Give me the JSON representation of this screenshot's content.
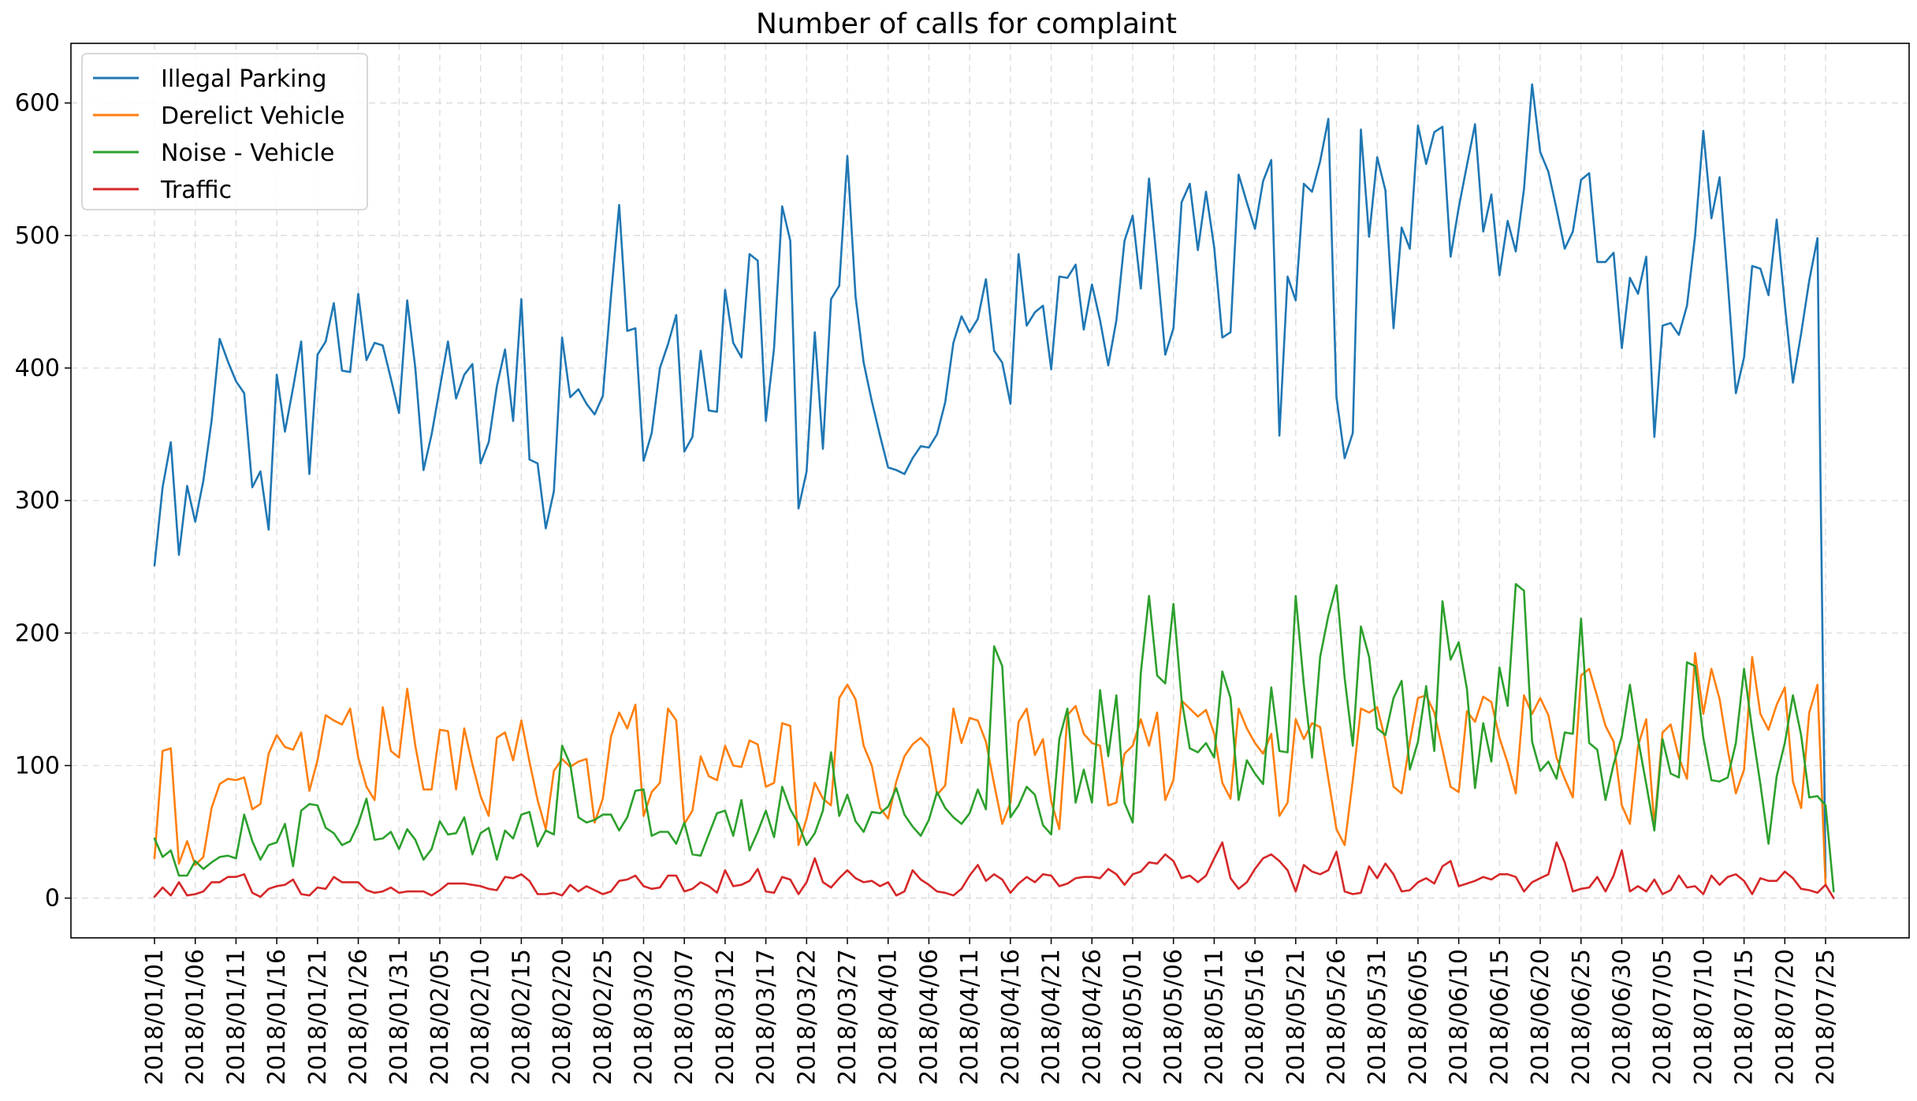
{
  "chart_data": {
    "type": "line",
    "title": "Number of calls for complaint",
    "xlabel": "",
    "ylabel": "",
    "ylim": [
      -30,
      645
    ],
    "yticks": [
      0,
      100,
      200,
      300,
      400,
      500,
      600
    ],
    "x_start": "2018/01/01",
    "x_end": "2018/07/25",
    "x_tick_labels": [
      "2018/01/01",
      "2018/01/06",
      "2018/01/11",
      "2018/01/16",
      "2018/01/21",
      "2018/01/26",
      "2018/01/31",
      "2018/02/05",
      "2018/02/10",
      "2018/02/15",
      "2018/02/20",
      "2018/02/25",
      "2018/03/02",
      "2018/03/07",
      "2018/03/12",
      "2018/03/17",
      "2018/03/22",
      "2018/03/27",
      "2018/04/01",
      "2018/04/06",
      "2018/04/11",
      "2018/04/16",
      "2018/04/21",
      "2018/04/26",
      "2018/05/01",
      "2018/05/06",
      "2018/05/11",
      "2018/05/16",
      "2018/05/21",
      "2018/05/26",
      "2018/05/31",
      "2018/06/05",
      "2018/06/10",
      "2018/06/15",
      "2018/06/20",
      "2018/06/25",
      "2018/06/30",
      "2018/07/05",
      "2018/07/10",
      "2018/07/15",
      "2018/07/20",
      "2018/07/25"
    ],
    "grid": true,
    "legend_position": "top-left",
    "series": [
      {
        "name": "Illegal Parking",
        "color": "#1f77b4",
        "values": [
          251,
          310,
          344,
          259,
          311,
          284,
          315,
          360,
          422,
          405,
          390,
          381,
          310,
          322,
          278,
          395,
          352,
          385,
          420,
          320,
          410,
          420,
          449,
          398,
          397,
          456,
          406,
          419,
          417,
          392,
          366,
          451,
          400,
          323,
          350,
          385,
          420,
          377,
          395,
          403,
          328,
          344,
          386,
          414,
          360,
          452,
          331,
          328,
          279,
          307,
          423,
          378,
          384,
          373,
          365,
          379,
          454,
          523,
          428,
          430,
          330,
          351,
          400,
          418,
          440,
          337,
          348,
          413,
          368,
          367,
          459,
          419,
          408,
          486,
          481,
          360,
          415,
          522,
          496,
          294,
          322,
          427,
          339,
          452,
          462,
          560,
          454,
          404,
          375,
          349,
          325,
          323,
          320,
          332,
          341,
          340,
          350,
          374,
          419,
          439,
          427,
          437,
          467,
          413,
          404,
          373,
          486,
          432,
          442,
          447,
          399,
          469,
          468,
          478,
          429,
          463,
          436,
          402,
          436,
          496,
          515,
          460,
          543,
          478,
          410,
          430,
          525,
          539,
          489,
          533,
          491,
          423,
          427,
          546,
          525,
          505,
          541,
          557,
          349,
          469,
          451,
          539,
          533,
          556,
          588,
          378,
          332,
          351,
          580,
          499,
          559,
          534,
          430,
          506,
          490,
          583,
          554,
          578,
          582,
          484,
          521,
          553,
          584,
          503,
          531,
          470,
          511,
          488,
          535,
          614,
          563,
          548,
          520,
          490,
          503,
          542,
          547,
          480,
          480,
          487,
          415,
          468,
          456,
          484,
          348,
          432,
          434,
          425,
          447,
          500,
          579,
          513,
          544,
          465,
          381,
          408,
          477,
          475,
          455,
          512,
          448,
          389,
          426,
          466,
          498,
          15
        ]
      },
      {
        "name": "Derelict Vehicle",
        "color": "#ff7f0e",
        "values": [
          30,
          111,
          113,
          26,
          43,
          25,
          31,
          68,
          86,
          90,
          89,
          91,
          67,
          71,
          109,
          123,
          114,
          112,
          125,
          81,
          104,
          138,
          134,
          131,
          143,
          106,
          84,
          74,
          144,
          111,
          106,
          158,
          115,
          82,
          82,
          127,
          126,
          82,
          128,
          101,
          77,
          62,
          121,
          125,
          104,
          134,
          103,
          74,
          52,
          96,
          105,
          99,
          103,
          105,
          57,
          75,
          122,
          140,
          128,
          146,
          62,
          80,
          87,
          143,
          134,
          56,
          66,
          107,
          92,
          89,
          115,
          100,
          99,
          119,
          116,
          84,
          87,
          132,
          130,
          40,
          60,
          87,
          75,
          70,
          151,
          161,
          150,
          115,
          100,
          68,
          60,
          88,
          107,
          116,
          121,
          114,
          78,
          85,
          143,
          117,
          136,
          134,
          118,
          86,
          56,
          72,
          133,
          143,
          108,
          120,
          73,
          52,
          138,
          145,
          124,
          117,
          115,
          70,
          72,
          109,
          115,
          135,
          115,
          140,
          74,
          89,
          149,
          143,
          137,
          142,
          124,
          87,
          75,
          143,
          128,
          117,
          109,
          124,
          62,
          72,
          135,
          120,
          132,
          129,
          90,
          52,
          40,
          89,
          143,
          140,
          144,
          119,
          84,
          79,
          118,
          151,
          153,
          140,
          112,
          84,
          80,
          141,
          133,
          152,
          148,
          121,
          102,
          79,
          153,
          139,
          151,
          138,
          106,
          90,
          76,
          168,
          173,
          152,
          130,
          118,
          70,
          56,
          115,
          135,
          55,
          125,
          131,
          106,
          90,
          185,
          139,
          173,
          150,
          112,
          79,
          97,
          182,
          139,
          127,
          146,
          159,
          88,
          68,
          140,
          161,
          10
        ]
      },
      {
        "name": "Noise - Vehicle",
        "color": "#2ca02c",
        "values": [
          45,
          31,
          36,
          17,
          17,
          28,
          22,
          27,
          31,
          32,
          30,
          63,
          43,
          29,
          40,
          42,
          56,
          24,
          66,
          71,
          70,
          53,
          49,
          40,
          43,
          56,
          75,
          44,
          45,
          50,
          37,
          52,
          44,
          29,
          37,
          58,
          48,
          49,
          61,
          33,
          49,
          53,
          29,
          51,
          45,
          63,
          65,
          39,
          51,
          48,
          115,
          101,
          61,
          57,
          59,
          63,
          63,
          51,
          61,
          81,
          82,
          47,
          50,
          50,
          41,
          57,
          33,
          32,
          48,
          64,
          66,
          47,
          74,
          36,
          50,
          66,
          46,
          84,
          67,
          56,
          40,
          49,
          66,
          110,
          62,
          78,
          58,
          50,
          65,
          64,
          69,
          83,
          63,
          54,
          47,
          59,
          80,
          68,
          61,
          56,
          64,
          82,
          67,
          190,
          175,
          61,
          70,
          84,
          78,
          55,
          48,
          120,
          143,
          72,
          97,
          72,
          157,
          107,
          153,
          72,
          57,
          170,
          228,
          168,
          162,
          222,
          150,
          113,
          110,
          117,
          106,
          171,
          151,
          74,
          104,
          94,
          86,
          159,
          111,
          110,
          228,
          161,
          106,
          182,
          213,
          236,
          166,
          115,
          205,
          182,
          128,
          123,
          151,
          164,
          97,
          118,
          160,
          111,
          224,
          180,
          193,
          158,
          83,
          132,
          103,
          174,
          145,
          237,
          232,
          118,
          96,
          103,
          90,
          125,
          124,
          211,
          117,
          112,
          74,
          101,
          122,
          161,
          120,
          86,
          51,
          120,
          94,
          91,
          178,
          175,
          121,
          89,
          88,
          91,
          117,
          173,
          127,
          86,
          41,
          92,
          117,
          153,
          123,
          76,
          77,
          70,
          5
        ]
      },
      {
        "name": "Traffic",
        "color": "#d62728",
        "values": [
          1,
          8,
          2,
          12,
          2,
          3,
          5,
          12,
          12,
          16,
          16,
          18,
          4,
          1,
          7,
          9,
          10,
          14,
          3,
          2,
          8,
          7,
          16,
          12,
          12,
          12,
          6,
          4,
          5,
          8,
          4,
          5,
          5,
          5,
          2,
          6,
          11,
          11,
          11,
          10,
          9,
          7,
          6,
          16,
          15,
          18,
          13,
          3,
          3,
          4,
          2,
          10,
          5,
          9,
          6,
          3,
          5,
          13,
          14,
          17,
          9,
          7,
          8,
          17,
          17,
          5,
          7,
          12,
          9,
          4,
          21,
          9,
          10,
          13,
          22,
          5,
          4,
          16,
          14,
          3,
          12,
          30,
          12,
          8,
          15,
          21,
          15,
          12,
          13,
          9,
          12,
          2,
          5,
          21,
          14,
          10,
          5,
          4,
          2,
          7,
          17,
          25,
          13,
          18,
          14,
          4,
          11,
          16,
          12,
          18,
          17,
          9,
          11,
          15,
          16,
          16,
          15,
          22,
          18,
          10,
          18,
          20,
          27,
          26,
          33,
          28,
          15,
          17,
          12,
          17,
          30,
          42,
          15,
          7,
          12,
          22,
          30,
          33,
          28,
          21,
          5,
          25,
          20,
          18,
          21,
          35,
          5,
          3,
          4,
          24,
          15,
          26,
          18,
          5,
          6,
          12,
          15,
          11,
          24,
          28,
          9,
          11,
          13,
          16,
          14,
          18,
          18,
          16,
          5,
          12,
          15,
          18,
          42,
          27,
          5,
          7,
          8,
          16,
          5,
          17,
          36,
          5,
          9,
          5,
          14,
          3,
          6,
          17,
          8,
          9,
          3,
          17,
          10,
          16,
          18,
          13,
          3,
          15,
          13,
          13,
          20,
          15,
          7,
          6,
          4,
          10,
          0
        ]
      }
    ]
  }
}
